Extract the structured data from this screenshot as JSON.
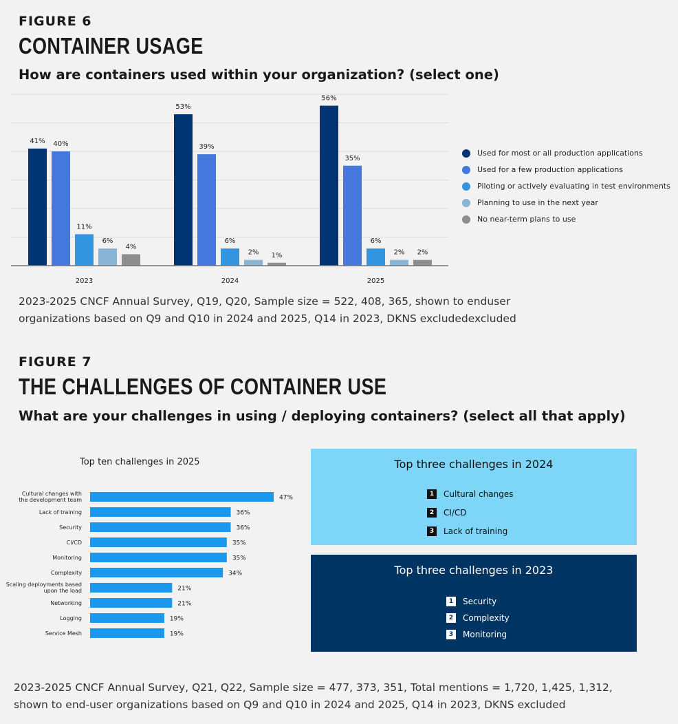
{
  "figure6": {
    "label": "FIGURE 6",
    "title": "CONTAINER USAGE",
    "question": "How are containers used within your organization? (select one)",
    "caption": "2023-2025 CNCF Annual Survey, Q19, Q20, Sample size = 522, 408, 365, shown to enduser organizations based on Q9 and Q10 in 2024 and 2025, Q14 in 2023, DKNS excludedexcluded"
  },
  "figure7": {
    "label": "FIGURE 7",
    "title": "THE CHALLENGES OF CONTAINER USE",
    "question": "What are your challenges in using / deploying containers? (select all that apply)",
    "caption": "2023-2025 CNCF Annual Survey, Q21, Q22, Sample size = 477, 373, 351, Total mentions = 1,720, 1,425, 1,312, shown to end-user organizations based on Q9 and Q10 in 2024 and 2025, Q14 in 2023, DKNS excluded",
    "box2024": {
      "title": "Top three challenges in 2024",
      "items": [
        {
          "rank": "1",
          "label": "Cultural changes"
        },
        {
          "rank": "2",
          "label": "CI/CD"
        },
        {
          "rank": "3",
          "label": "Lack of training"
        }
      ],
      "bg": "#7dd6f7"
    },
    "box2023": {
      "title": "Top three challenges in 2023",
      "items": [
        {
          "rank": "1",
          "label": "Security"
        },
        {
          "rank": "2",
          "label": "Complexity"
        },
        {
          "rank": "3",
          "label": "Monitoring"
        }
      ],
      "bg": "#003462"
    }
  },
  "chart_data": [
    {
      "type": "bar",
      "categories": [
        "2023",
        "2024",
        "2025"
      ],
      "series": [
        {
          "name": "Used for most or all production applications",
          "values": [
            41,
            53,
            56
          ],
          "color": "#003472"
        },
        {
          "name": "Used for a few production applications",
          "values": [
            40,
            39,
            35
          ],
          "color": "#4478dc"
        },
        {
          "name": "Piloting or actively evaluating in test environments",
          "values": [
            11,
            6,
            6
          ],
          "color": "#3394e0"
        },
        {
          "name": "Planning to use in the next year",
          "values": [
            6,
            2,
            2
          ],
          "color": "#8ab4d4"
        },
        {
          "name": "No near-term plans to use",
          "values": [
            4,
            1,
            2
          ],
          "color": "#8e8e8e"
        }
      ],
      "value_suffix": "%",
      "ylim": [
        0,
        60
      ],
      "grid": true,
      "legend": "right"
    },
    {
      "type": "bar",
      "orientation": "horizontal",
      "title": "Top ten challenges in 2025",
      "categories": [
        "Cultural changes with the development team",
        "Lack of training",
        "Security",
        "CI/CD",
        "Monitoring",
        "Complexity",
        "Scaling deployments based upon the load",
        "Networking",
        "Logging",
        "Service Mesh"
      ],
      "values": [
        47,
        36,
        36,
        35,
        35,
        34,
        21,
        21,
        19,
        19
      ],
      "value_suffix": "%",
      "color": "#1a98ee",
      "xlim": [
        0,
        47
      ]
    }
  ]
}
